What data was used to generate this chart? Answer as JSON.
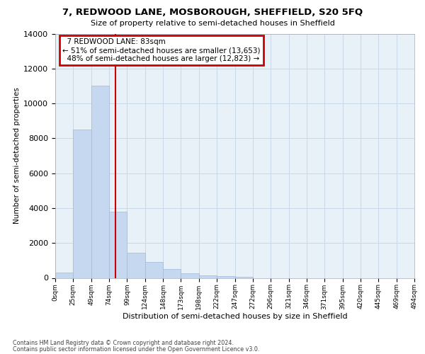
{
  "title": "7, REDWOOD LANE, MOSBOROUGH, SHEFFIELD, S20 5FQ",
  "subtitle": "Size of property relative to semi-detached houses in Sheffield",
  "xlabel": "Distribution of semi-detached houses by size in Sheffield",
  "ylabel": "Number of semi-detached properties",
  "footer_line1": "Contains HM Land Registry data © Crown copyright and database right 2024.",
  "footer_line2": "Contains public sector information licensed under the Open Government Licence v3.0.",
  "property_size_sqm": 83,
  "property_label": "7 REDWOOD LANE: 83sqm",
  "pct_smaller": 51,
  "count_smaller": 13653,
  "pct_larger": 48,
  "count_larger": 12823,
  "bin_labels": [
    "0sqm",
    "25sqm",
    "49sqm",
    "74sqm",
    "99sqm",
    "124sqm",
    "148sqm",
    "173sqm",
    "198sqm",
    "222sqm",
    "247sqm",
    "272sqm",
    "296sqm",
    "321sqm",
    "346sqm",
    "371sqm",
    "395sqm",
    "420sqm",
    "445sqm",
    "469sqm",
    "494sqm"
  ],
  "bin_starts": [
    0,
    25,
    49,
    74,
    99,
    124,
    148,
    173,
    198,
    222,
    247,
    272,
    296,
    321,
    346,
    371,
    395,
    420,
    445,
    469,
    494
  ],
  "bar_values": [
    300,
    8500,
    11000,
    3800,
    1450,
    900,
    500,
    280,
    150,
    100,
    50,
    0,
    0,
    0,
    0,
    0,
    0,
    0,
    0,
    0
  ],
  "bar_color": "#c5d8f0",
  "bar_edge_color": "#a0b8d8",
  "grid_color": "#c8d8e8",
  "bg_color": "#e8f0f8",
  "vline_color": "#cc0000",
  "annotation_border_color": "#cc0000",
  "ylim_max": 14000,
  "yticks": [
    0,
    2000,
    4000,
    6000,
    8000,
    10000,
    12000,
    14000
  ]
}
